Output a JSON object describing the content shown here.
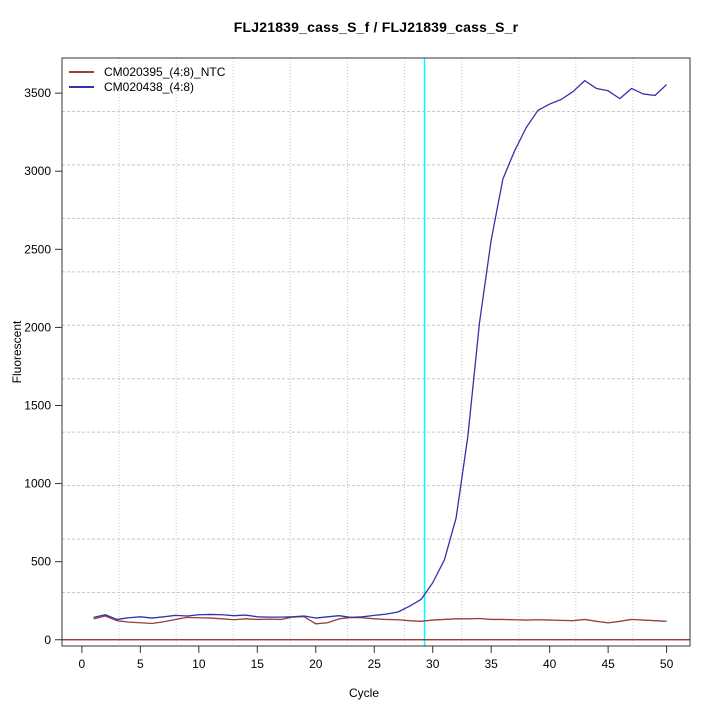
{
  "chart_data": {
    "type": "line",
    "title": "FLJ21839_cass_S_f / FLJ21839_cass_S_r",
    "xlabel": "Cycle",
    "ylabel": "Fluorescent",
    "x_ticks": [
      0,
      5,
      10,
      15,
      20,
      25,
      30,
      35,
      40,
      45,
      50
    ],
    "y_ticks": [
      0,
      500,
      1000,
      1500,
      2000,
      2500,
      3000,
      3500
    ],
    "xlim": [
      -1.7,
      52.0
    ],
    "ylim": [
      -40,
      3725
    ],
    "grid": {
      "divisions_x": 11,
      "divisions_y": 11,
      "style": "dotted",
      "color": "#c8c8c8"
    },
    "threshold_cycle_line": {
      "x": 29.3,
      "color": "#00ffff"
    },
    "baseline": {
      "y": 0,
      "color": "#8b2020"
    },
    "legend_position": "top-left",
    "x": [
      1,
      2,
      3,
      4,
      5,
      6,
      7,
      8,
      9,
      10,
      11,
      12,
      13,
      14,
      15,
      16,
      17,
      18,
      19,
      20,
      21,
      22,
      23,
      24,
      25,
      26,
      27,
      28,
      29,
      30,
      31,
      32,
      33,
      34,
      35,
      36,
      37,
      38,
      39,
      40,
      41,
      42,
      43,
      44,
      45,
      46,
      47,
      48,
      49,
      50
    ],
    "series": [
      {
        "name": "CM020395_(4:8)_NTC",
        "color": "#9c3c3c",
        "values": [
          134,
          152,
          122,
          113,
          109,
          104,
          115,
          130,
          143,
          141,
          139,
          134,
          128,
          134,
          130,
          132,
          130,
          145,
          148,
          102,
          109,
          134,
          143,
          141,
          134,
          130,
          128,
          122,
          118,
          126,
          130,
          134,
          134,
          136,
          130,
          130,
          128,
          126,
          128,
          126,
          124,
          122,
          130,
          118,
          108,
          118,
          130,
          126,
          122,
          118
        ]
      },
      {
        "name": "CM020438_(4:8)",
        "color": "#3232aa",
        "values": [
          143,
          160,
          130,
          141,
          147,
          139,
          147,
          156,
          152,
          160,
          162,
          160,
          154,
          158,
          147,
          145,
          145,
          147,
          152,
          139,
          147,
          154,
          143,
          147,
          156,
          164,
          177,
          214,
          258,
          365,
          512,
          780,
          1300,
          2030,
          2560,
          2950,
          3130,
          3280,
          3390,
          3430,
          3460,
          3510,
          3580,
          3530,
          3515,
          3465,
          3530,
          3495,
          3485,
          3555
        ]
      }
    ]
  }
}
